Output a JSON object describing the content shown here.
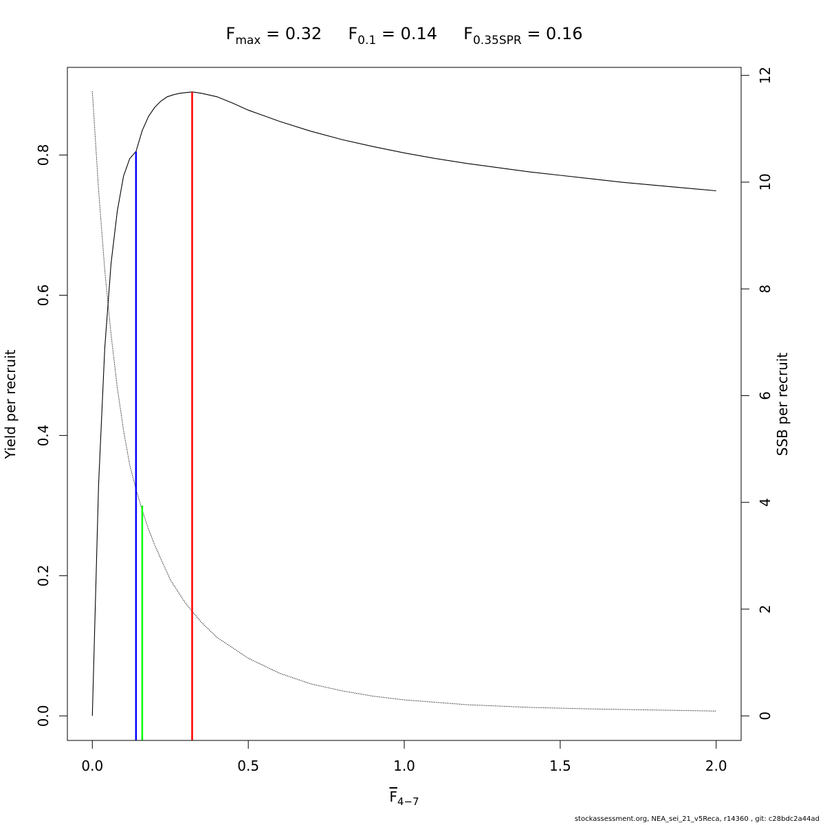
{
  "chart_data": {
    "type": "line",
    "title_parts": [
      {
        "base": "F",
        "sub": "max",
        "rest": " = 0.32"
      },
      {
        "base": "F",
        "sub": "0.1",
        "rest": " = 0.14"
      },
      {
        "base": "F",
        "sub": "0.35SPR",
        "rest": " = 0.16"
      }
    ],
    "xlabel_base": "F",
    "xlabel_sub": "4−7",
    "ylabel_left": "Yield per recruit",
    "ylabel_right": "SSB per recruit",
    "xlim": [
      -0.08,
      2.08
    ],
    "ylim_left": [
      -0.035,
      0.925
    ],
    "ylim_right": [
      -0.46,
      12.15
    ],
    "x_ticks": [
      0.0,
      0.5,
      1.0,
      1.5,
      2.0
    ],
    "x_tick_labels": [
      "0.0",
      "0.5",
      "1.0",
      "1.5",
      "2.0"
    ],
    "y_left_ticks": [
      0.0,
      0.2,
      0.4,
      0.6,
      0.8
    ],
    "y_left_tick_labels": [
      "0.0",
      "0.2",
      "0.4",
      "0.6",
      "0.8"
    ],
    "y_right_ticks": [
      0,
      2,
      4,
      6,
      8,
      10,
      12
    ],
    "y_right_tick_labels": [
      "0",
      "2",
      "4",
      "6",
      "8",
      "10",
      "12"
    ],
    "series": [
      {
        "axis": "left",
        "style": "solid",
        "x": [
          0.0,
          0.02,
          0.04,
          0.06,
          0.08,
          0.1,
          0.12,
          0.14,
          0.16,
          0.18,
          0.2,
          0.22,
          0.24,
          0.26,
          0.28,
          0.3,
          0.32,
          0.35,
          0.4,
          0.45,
          0.5,
          0.6,
          0.7,
          0.8,
          0.9,
          1.0,
          1.1,
          1.2,
          1.3,
          1.4,
          1.5,
          1.6,
          1.7,
          1.8,
          1.9,
          2.0
        ],
        "y": [
          0.0,
          0.33,
          0.525,
          0.645,
          0.72,
          0.77,
          0.795,
          0.805,
          0.835,
          0.855,
          0.868,
          0.877,
          0.883,
          0.886,
          0.888,
          0.889,
          0.89,
          0.888,
          0.883,
          0.874,
          0.864,
          0.848,
          0.834,
          0.822,
          0.812,
          0.803,
          0.795,
          0.788,
          0.782,
          0.776,
          0.771,
          0.766,
          0.761,
          0.757,
          0.753,
          0.749
        ]
      },
      {
        "axis": "right",
        "style": "dotted",
        "x": [
          0.0,
          0.02,
          0.04,
          0.06,
          0.08,
          0.1,
          0.12,
          0.14,
          0.16,
          0.18,
          0.2,
          0.25,
          0.3,
          0.35,
          0.4,
          0.5,
          0.6,
          0.7,
          0.8,
          0.9,
          1.0,
          1.2,
          1.4,
          1.6,
          1.8,
          2.0
        ],
        "y": [
          11.7,
          9.85,
          8.35,
          7.15,
          6.15,
          5.35,
          4.7,
          4.25,
          3.85,
          3.5,
          3.2,
          2.55,
          2.1,
          1.75,
          1.47,
          1.08,
          0.8,
          0.6,
          0.47,
          0.37,
          0.3,
          0.21,
          0.16,
          0.13,
          0.11,
          0.09
        ]
      }
    ],
    "reference_lines": [
      {
        "x": 0.32,
        "y_top": 0.89,
        "color": "#ff0000"
      },
      {
        "x": 0.14,
        "y_top": 0.805,
        "color": "#0000ff"
      },
      {
        "x": 0.16,
        "y_top": 0.3,
        "color": "#00ff00"
      }
    ]
  },
  "footer_text": "stockassessment.org, NEA_sei_21_v5Reca, r14360 , git: c28bdc2a44ad"
}
